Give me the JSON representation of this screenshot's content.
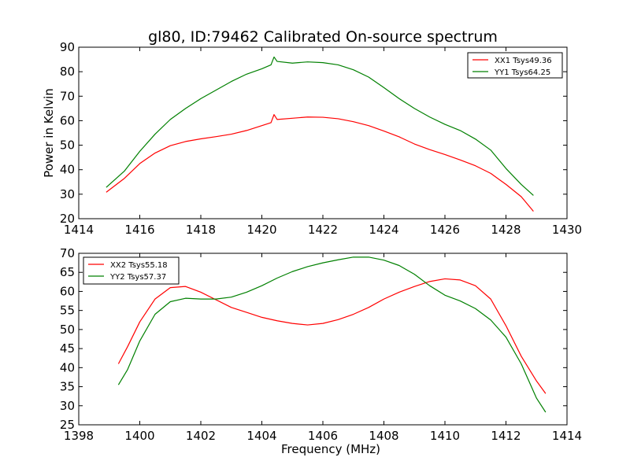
{
  "figure": {
    "title": "gl80, ID:79462 Calibrated On-source spectrum"
  },
  "chart_data": [
    {
      "type": "line",
      "title": "gl80, ID:79462 Calibrated On-source spectrum",
      "xlabel": "",
      "ylabel": "Power in Kelvin",
      "xlim": [
        1414,
        1430
      ],
      "ylim": [
        20,
        90
      ],
      "x_ticks": [
        1414,
        1416,
        1418,
        1420,
        1422,
        1424,
        1426,
        1428,
        1430
      ],
      "y_ticks": [
        20,
        30,
        40,
        50,
        60,
        70,
        80,
        90
      ],
      "grid": false,
      "legend_position": "top-right",
      "series": [
        {
          "name": "XX1 Tsys49.36",
          "color": "#ff0000",
          "points": [
            [
              1414.9,
              30.8
            ],
            [
              1415.5,
              36.5
            ],
            [
              1416.0,
              42.5
            ],
            [
              1416.5,
              46.8
            ],
            [
              1417.0,
              49.8
            ],
            [
              1417.5,
              51.5
            ],
            [
              1418.0,
              52.6
            ],
            [
              1418.5,
              53.5
            ],
            [
              1419.0,
              54.5
            ],
            [
              1419.5,
              56.0
            ],
            [
              1420.0,
              58.0
            ],
            [
              1420.3,
              59.2
            ],
            [
              1420.4,
              62.5
            ],
            [
              1420.5,
              60.5
            ],
            [
              1421.0,
              61.0
            ],
            [
              1421.5,
              61.5
            ],
            [
              1422.0,
              61.4
            ],
            [
              1422.5,
              60.8
            ],
            [
              1423.0,
              59.6
            ],
            [
              1423.5,
              58.0
            ],
            [
              1424.0,
              55.8
            ],
            [
              1424.5,
              53.4
            ],
            [
              1425.0,
              50.5
            ],
            [
              1425.5,
              48.2
            ],
            [
              1426.0,
              46.2
            ],
            [
              1426.5,
              44.0
            ],
            [
              1427.0,
              41.6
            ],
            [
              1427.5,
              38.5
            ],
            [
              1428.0,
              34.0
            ],
            [
              1428.5,
              29.0
            ],
            [
              1428.9,
              23.0
            ]
          ]
        },
        {
          "name": "YY1 Tsys64.25",
          "color": "#008000",
          "points": [
            [
              1414.9,
              32.8
            ],
            [
              1415.5,
              39.5
            ],
            [
              1416.0,
              47.5
            ],
            [
              1416.5,
              54.5
            ],
            [
              1417.0,
              60.5
            ],
            [
              1417.5,
              65.0
            ],
            [
              1418.0,
              69.0
            ],
            [
              1418.5,
              72.5
            ],
            [
              1419.0,
              76.0
            ],
            [
              1419.5,
              79.0
            ],
            [
              1420.0,
              81.2
            ],
            [
              1420.3,
              82.8
            ],
            [
              1420.4,
              86.0
            ],
            [
              1420.5,
              84.2
            ],
            [
              1421.0,
              83.5
            ],
            [
              1421.5,
              84.0
            ],
            [
              1422.0,
              83.7
            ],
            [
              1422.5,
              82.8
            ],
            [
              1423.0,
              80.8
            ],
            [
              1423.5,
              77.8
            ],
            [
              1424.0,
              73.5
            ],
            [
              1424.5,
              69.0
            ],
            [
              1425.0,
              65.0
            ],
            [
              1425.5,
              61.5
            ],
            [
              1426.0,
              58.5
            ],
            [
              1426.5,
              56.0
            ],
            [
              1427.0,
              52.5
            ],
            [
              1427.5,
              48.0
            ],
            [
              1428.0,
              40.5
            ],
            [
              1428.5,
              34.0
            ],
            [
              1428.9,
              29.5
            ]
          ]
        }
      ]
    },
    {
      "type": "line",
      "title": "",
      "xlabel": "Frequency (MHz)",
      "ylabel": "",
      "xlim": [
        1398,
        1414
      ],
      "ylim": [
        25,
        70
      ],
      "x_ticks": [
        1398,
        1400,
        1402,
        1404,
        1406,
        1408,
        1410,
        1412,
        1414
      ],
      "y_ticks": [
        25,
        30,
        35,
        40,
        45,
        50,
        55,
        60,
        65,
        70
      ],
      "grid": false,
      "legend_position": "top-left",
      "series": [
        {
          "name": "XX2 Tsys55.18",
          "color": "#ff0000",
          "points": [
            [
              1399.3,
              41.0
            ],
            [
              1399.6,
              45.5
            ],
            [
              1400.0,
              52.0
            ],
            [
              1400.5,
              58.0
            ],
            [
              1401.0,
              61.0
            ],
            [
              1401.5,
              61.3
            ],
            [
              1402.0,
              59.8
            ],
            [
              1402.5,
              57.8
            ],
            [
              1403.0,
              55.8
            ],
            [
              1403.5,
              54.5
            ],
            [
              1404.0,
              53.2
            ],
            [
              1404.5,
              52.3
            ],
            [
              1405.0,
              51.6
            ],
            [
              1405.5,
              51.2
            ],
            [
              1406.0,
              51.6
            ],
            [
              1406.5,
              52.6
            ],
            [
              1407.0,
              54.0
            ],
            [
              1407.5,
              55.8
            ],
            [
              1408.0,
              58.0
            ],
            [
              1408.5,
              59.8
            ],
            [
              1409.0,
              61.3
            ],
            [
              1409.5,
              62.6
            ],
            [
              1410.0,
              63.3
            ],
            [
              1410.5,
              63.0
            ],
            [
              1411.0,
              61.5
            ],
            [
              1411.5,
              58.0
            ],
            [
              1412.0,
              51.0
            ],
            [
              1412.5,
              43.0
            ],
            [
              1413.0,
              36.5
            ],
            [
              1413.3,
              33.2
            ]
          ]
        },
        {
          "name": "YY2 Tsys57.37",
          "color": "#008000",
          "points": [
            [
              1399.3,
              35.5
            ],
            [
              1399.6,
              39.5
            ],
            [
              1400.0,
              47.0
            ],
            [
              1400.5,
              54.0
            ],
            [
              1401.0,
              57.3
            ],
            [
              1401.5,
              58.2
            ],
            [
              1402.0,
              58.0
            ],
            [
              1402.5,
              58.0
            ],
            [
              1403.0,
              58.5
            ],
            [
              1403.5,
              59.8
            ],
            [
              1404.0,
              61.5
            ],
            [
              1404.5,
              63.5
            ],
            [
              1405.0,
              65.2
            ],
            [
              1405.5,
              66.5
            ],
            [
              1406.0,
              67.5
            ],
            [
              1406.5,
              68.3
            ],
            [
              1407.0,
              69.0
            ],
            [
              1407.5,
              69.0
            ],
            [
              1408.0,
              68.2
            ],
            [
              1408.5,
              66.8
            ],
            [
              1409.0,
              64.5
            ],
            [
              1409.5,
              61.5
            ],
            [
              1410.0,
              59.0
            ],
            [
              1410.5,
              57.5
            ],
            [
              1411.0,
              55.5
            ],
            [
              1411.5,
              52.5
            ],
            [
              1412.0,
              48.0
            ],
            [
              1412.5,
              41.0
            ],
            [
              1413.0,
              32.0
            ],
            [
              1413.3,
              28.3
            ]
          ]
        }
      ]
    }
  ]
}
